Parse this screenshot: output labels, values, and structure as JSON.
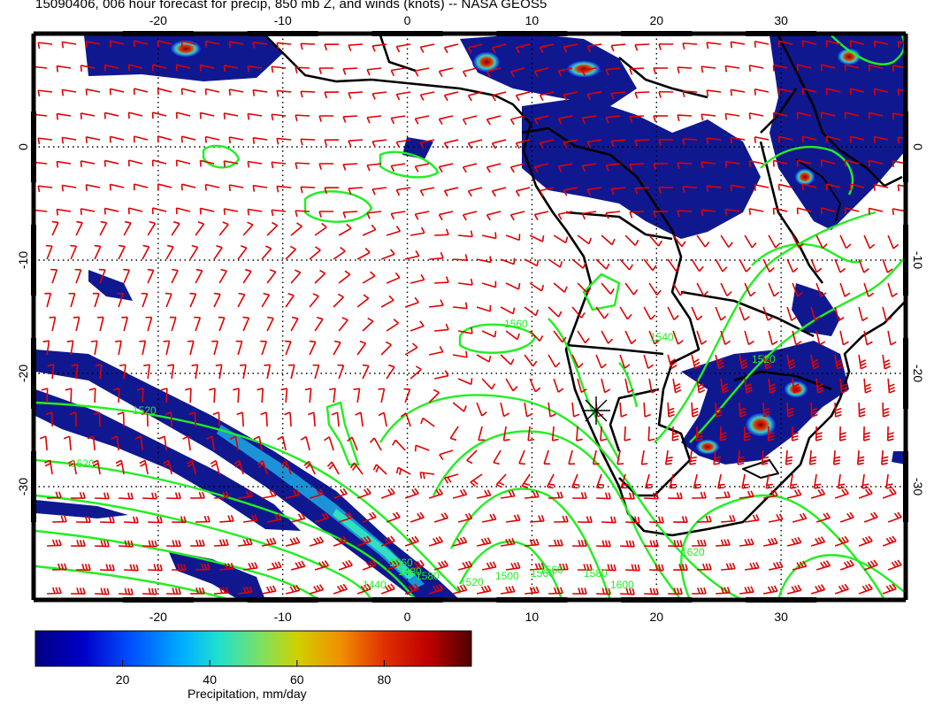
{
  "title": "15090406, 006 hour forecast for precip, 850 mb Z, and winds (knots) -- NASA GEOS5",
  "map": {
    "lon_ticks_bottom": [
      "-20",
      "-10",
      "0",
      "10",
      "20",
      "30"
    ],
    "lon_ticks_top": [
      "-20",
      "-10",
      "0",
      "10",
      "20",
      "30"
    ],
    "lat_ticks": [
      "0",
      "-10",
      "-20",
      "-30"
    ],
    "lon_range": [
      -30,
      40
    ],
    "lat_range": [
      -40,
      10
    ],
    "gridlines": true
  },
  "contours": {
    "color": "#22ee22",
    "labels": [
      "1520",
      "1520",
      "1560",
      "1580",
      "1600",
      "1620",
      "1440",
      "1480",
      "1520",
      "1560",
      "1500",
      "1560",
      "1580",
      "1560",
      "1540",
      "1520"
    ]
  },
  "colorbar": {
    "label": "Precipitation, mm/day",
    "ticks": [
      "20",
      "40",
      "60",
      "80"
    ],
    "range": [
      0,
      100
    ]
  },
  "colors": {
    "wind_barbs": "#e00000",
    "precip_low": "#0000a0",
    "precip_high": "#800000",
    "coast": "#000000"
  }
}
